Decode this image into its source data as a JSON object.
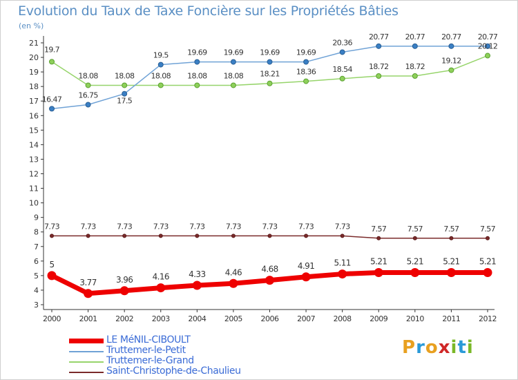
{
  "title": "Evolution du Taux de Taxe Foncière sur les Propriétés Bâties",
  "unit_label": "(en %)",
  "logo": {
    "text": "Proxiti",
    "letters": [
      "P",
      "r",
      "o",
      "x",
      "i",
      "t",
      "i"
    ],
    "colors": [
      "#e8a020",
      "#2a9ad8",
      "#e8a020",
      "#d02828",
      "#7ab828",
      "#2a9ad8",
      "#7ab828"
    ]
  },
  "chart_data": {
    "type": "line",
    "title": "Evolution du Taux de Taxe Foncière sur les Propriétés Bâties",
    "ylabel": "(en %)",
    "xlabel": "",
    "categories": [
      "2000",
      "2001",
      "2002",
      "2003",
      "2004",
      "2005",
      "2006",
      "2007",
      "2008",
      "2009",
      "2010",
      "2011",
      "2012"
    ],
    "yticks": [
      "3",
      "4",
      "5",
      "6",
      "7",
      "8",
      "9",
      "10",
      "11",
      "12",
      "13",
      "14",
      "15",
      "16",
      "17",
      "18",
      "19",
      "20",
      "21"
    ],
    "ylim": [
      3,
      21
    ],
    "series": [
      {
        "name": "LE MéNIL-CIBOULT",
        "color": "#ee0000",
        "values": [
          5,
          3.77,
          3.96,
          4.16,
          4.33,
          4.46,
          4.68,
          4.91,
          5.11,
          5.21,
          5.21,
          5.21,
          5.21
        ],
        "labels": [
          "5",
          "3.77",
          "3.96",
          "4.16",
          "4.33",
          "4.46",
          "4.68",
          "4.91",
          "5.11",
          "5.21",
          "5.21",
          "5.21",
          "5.21"
        ]
      },
      {
        "name": "Truttemer-le-Petit",
        "color": "#6fa2d6",
        "values": [
          16.47,
          16.75,
          17.5,
          19.5,
          19.69,
          19.69,
          19.69,
          19.69,
          20.36,
          20.77,
          20.77,
          20.77,
          20.77
        ],
        "labels": [
          "16.47",
          "16.75",
          "17.5",
          "19.5",
          "19.69",
          "19.69",
          "19.69",
          "19.69",
          "20.36",
          "20.77",
          "20.77",
          "20.77",
          "20.77"
        ]
      },
      {
        "name": "Truttemer-le-Grand",
        "color": "#96d46a",
        "values": [
          19.7,
          18.08,
          18.08,
          18.08,
          18.08,
          18.08,
          18.21,
          18.36,
          18.54,
          18.72,
          18.72,
          19.12,
          20.12
        ],
        "labels": [
          "19.7",
          "18.08",
          "18.08",
          "18.08",
          "18.08",
          "18.08",
          "18.21",
          "18.36",
          "18.54",
          "18.72",
          "18.72",
          "19.12",
          "20.12"
        ]
      },
      {
        "name": "Saint-Christophe-de-Chaulieu",
        "color": "#7a2a2a",
        "values": [
          7.73,
          7.73,
          7.73,
          7.73,
          7.73,
          7.73,
          7.73,
          7.73,
          7.73,
          7.57,
          7.57,
          7.57,
          7.57
        ],
        "labels": [
          "7.73",
          "7.73",
          "7.73",
          "7.73",
          "7.73",
          "7.73",
          "7.73",
          "7.73",
          "7.73",
          "7.57",
          "7.57",
          "7.57",
          "7.57"
        ]
      }
    ],
    "legend_position": "bottom-left",
    "grid": false
  }
}
